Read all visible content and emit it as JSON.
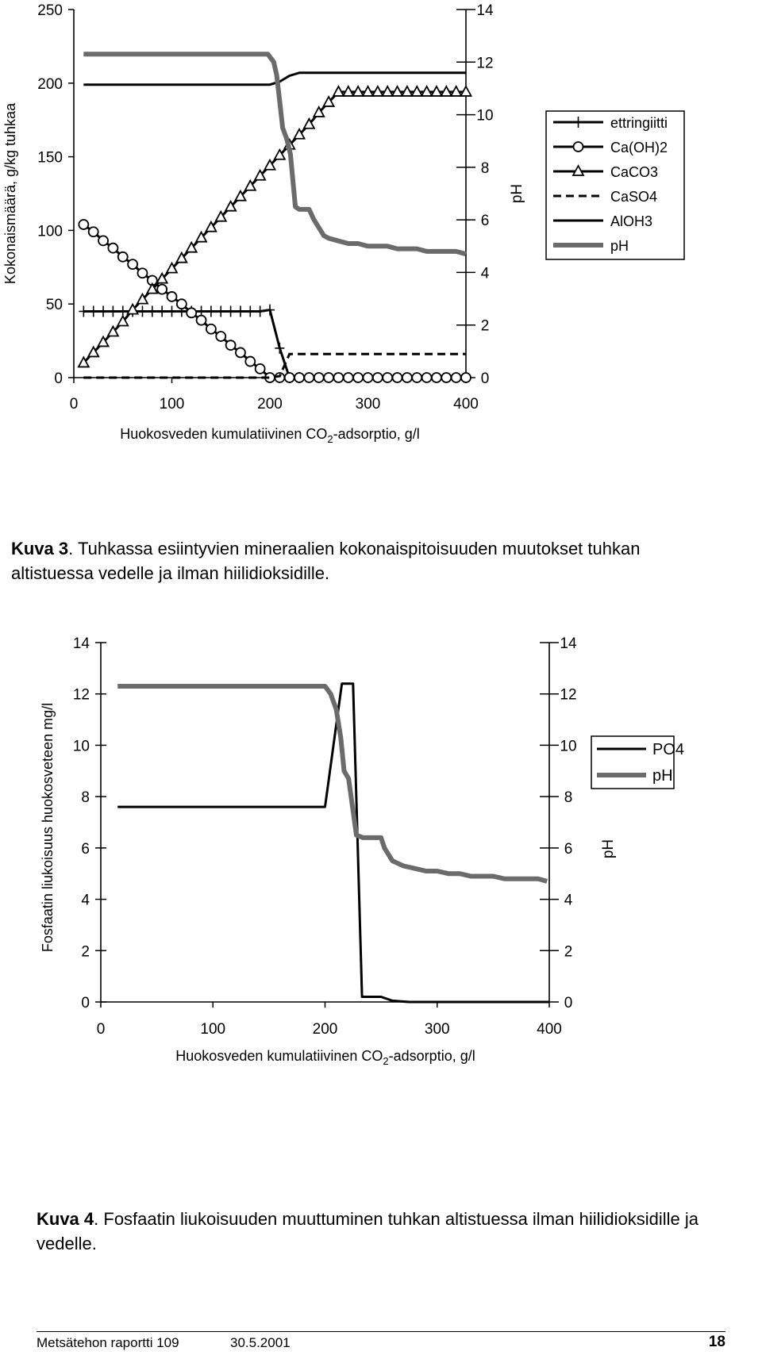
{
  "chart_data": [
    {
      "type": "line",
      "caption_label": "Kuva 3",
      "caption_text": ". Tuhkassa esiintyvien mineraalien kokonaispitoisuuden muutokset tuhkan altistuessa vedelle ja ilman hiilidioksidille.",
      "xlabel_pre": "Huokosveden kumulatiivinen CO",
      "xlabel_sub": "2",
      "xlabel_post": "-adsorptio, g/l",
      "ylabel": "Kokonaismäärä, g/kg tuhkaa",
      "y2label": "pH",
      "xlim": [
        0,
        400
      ],
      "ylim": [
        0,
        250
      ],
      "y2lim": [
        0,
        14
      ],
      "x_ticks": [
        "0",
        "100",
        "200",
        "300",
        "400"
      ],
      "y_ticks": [
        "0",
        "50",
        "100",
        "150",
        "200",
        "250"
      ],
      "y2_ticks": [
        "0",
        "2",
        "4",
        "6",
        "8",
        "10",
        "12",
        "14"
      ],
      "series": [
        {
          "name": "ettringiitti",
          "axis": "left",
          "marker": "plus",
          "style": "solid",
          "x": [
            10,
            20,
            30,
            40,
            50,
            60,
            70,
            80,
            90,
            100,
            110,
            120,
            130,
            140,
            150,
            160,
            170,
            180,
            190,
            200,
            210,
            220,
            230,
            400
          ],
          "y": [
            45,
            45,
            45,
            45,
            45,
            45,
            45,
            45,
            45,
            45,
            45,
            45,
            45,
            45,
            45,
            45,
            45,
            45,
            45,
            46,
            20,
            0,
            0,
            0
          ]
        },
        {
          "name": "Ca(OH)2",
          "axis": "left",
          "marker": "circle",
          "style": "solid",
          "x": [
            10,
            20,
            30,
            40,
            50,
            60,
            70,
            80,
            90,
            100,
            110,
            120,
            130,
            140,
            150,
            160,
            170,
            180,
            190,
            200,
            210,
            220,
            230,
            240,
            250,
            260,
            270,
            280,
            290,
            300,
            310,
            320,
            330,
            340,
            350,
            360,
            370,
            380,
            390,
            400
          ],
          "y": [
            104,
            99,
            93,
            88,
            82,
            77,
            71,
            66,
            60,
            55,
            50,
            44,
            39,
            33,
            28,
            22,
            17,
            11,
            6,
            0,
            0,
            0,
            0,
            0,
            0,
            0,
            0,
            0,
            0,
            0,
            0,
            0,
            0,
            0,
            0,
            0,
            0,
            0,
            0,
            0
          ]
        },
        {
          "name": "CaCO3",
          "axis": "left",
          "marker": "triangle",
          "style": "solid",
          "x": [
            10,
            20,
            30,
            40,
            50,
            60,
            70,
            80,
            90,
            100,
            110,
            120,
            130,
            140,
            150,
            160,
            170,
            180,
            190,
            200,
            210,
            220,
            230,
            240,
            250,
            260,
            270,
            280,
            290,
            300,
            310,
            320,
            330,
            340,
            350,
            360,
            370,
            380,
            390,
            400
          ],
          "y": [
            10,
            17,
            24,
            31,
            38,
            46,
            53,
            60,
            67,
            74,
            81,
            88,
            95,
            102,
            109,
            116,
            123,
            130,
            137,
            144,
            151,
            158,
            165,
            172,
            180,
            187,
            194,
            194,
            194,
            194,
            194,
            194,
            194,
            194,
            194,
            194,
            194,
            194,
            194,
            194
          ]
        },
        {
          "name": "CaSO4",
          "axis": "left",
          "marker": "none",
          "style": "dashed",
          "x": [
            10,
            200,
            210,
            220,
            400
          ],
          "y": [
            0,
            0,
            1,
            16,
            16
          ]
        },
        {
          "name": "AlOH3",
          "axis": "left",
          "marker": "none",
          "style": "solid",
          "x": [
            10,
            200,
            210,
            220,
            230,
            400
          ],
          "y": [
            199,
            199,
            201,
            205,
            207,
            207
          ]
        },
        {
          "name": "pH",
          "axis": "right",
          "marker": "none",
          "style": "thick-gray",
          "x": [
            10,
            30,
            50,
            70,
            90,
            110,
            130,
            150,
            170,
            190,
            198,
            204,
            207,
            210,
            213,
            217,
            221,
            226,
            230,
            240,
            245,
            250,
            255,
            260,
            270,
            280,
            290,
            300,
            310,
            320,
            330,
            340,
            350,
            360,
            380,
            390,
            400
          ],
          "y": [
            12.3,
            12.3,
            12.3,
            12.3,
            12.3,
            12.3,
            12.3,
            12.3,
            12.3,
            12.3,
            12.3,
            12.0,
            11.5,
            10.5,
            9.5,
            9.1,
            8.5,
            6.5,
            6.4,
            6.4,
            6.0,
            5.7,
            5.4,
            5.3,
            5.2,
            5.1,
            5.1,
            5.0,
            5.0,
            5.0,
            4.9,
            4.9,
            4.9,
            4.8,
            4.8,
            4.8,
            4.7
          ]
        }
      ]
    },
    {
      "type": "line",
      "caption_label": "Kuva 4",
      "caption_text": ". Fosfaatin liukoisuuden muuttuminen tuhkan altistuessa ilman hiilidioksidille ja vedelle.",
      "xlabel_pre": "Huokosveden kumulatiivinen CO",
      "xlabel_sub": "2",
      "xlabel_post": "-adsorptio, g/l",
      "ylabel": "Fosfaatin liukoisuus huokosveteen mg/l",
      "y2label": "pH",
      "xlim": [
        0,
        400
      ],
      "ylim": [
        0,
        14
      ],
      "y2lim": [
        0,
        14
      ],
      "x_ticks": [
        "0",
        "100",
        "200",
        "300",
        "400"
      ],
      "y_ticks": [
        "0",
        "2",
        "4",
        "6",
        "8",
        "10",
        "12",
        "14"
      ],
      "y2_ticks": [
        "0",
        "2",
        "4",
        "6",
        "8",
        "10",
        "12",
        "14"
      ],
      "series": [
        {
          "name": "PO4",
          "axis": "left",
          "marker": "none",
          "style": "solid",
          "x": [
            15,
            200,
            215,
            220,
            225,
            233,
            250,
            260,
            275,
            400
          ],
          "y": [
            7.6,
            7.6,
            12.4,
            12.4,
            12.4,
            0.2,
            0.2,
            0.05,
            0,
            0
          ]
        },
        {
          "name": "pH",
          "axis": "right",
          "marker": "none",
          "style": "thick-gray",
          "x": [
            15,
            60,
            100,
            150,
            200,
            205,
            210,
            214,
            217,
            221,
            228,
            234,
            240,
            250,
            253,
            260,
            265,
            270,
            280,
            290,
            300,
            310,
            320,
            330,
            340,
            350,
            360,
            370,
            380,
            390,
            398
          ],
          "y": [
            12.3,
            12.3,
            12.3,
            12.3,
            12.3,
            12.0,
            11.4,
            10.3,
            9.0,
            8.7,
            6.5,
            6.4,
            6.4,
            6.4,
            6.0,
            5.5,
            5.4,
            5.3,
            5.2,
            5.1,
            5.1,
            5.0,
            5.0,
            4.9,
            4.9,
            4.9,
            4.8,
            4.8,
            4.8,
            4.8,
            4.7
          ]
        }
      ]
    }
  ],
  "footer": {
    "report": "Metsätehon raportti  109",
    "date": "30.5.2001",
    "page": "18"
  }
}
